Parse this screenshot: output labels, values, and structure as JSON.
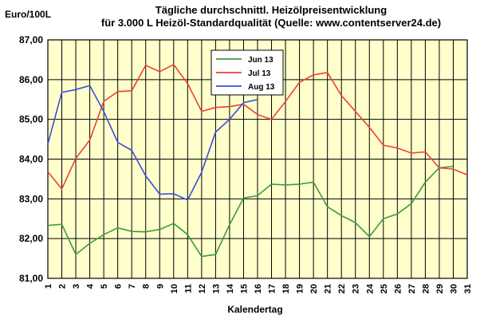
{
  "chart_data": {
    "type": "line",
    "title_line1": "Tägliche durchschnittl. Heizölpreisentwicklung",
    "title_line2": "für 3.000 L Heizöl-Standardqualität (Quelle: www.contentserver24.de)",
    "ylabel": "Euro/100L",
    "xlabel": "Kalendertag",
    "ylim": [
      81,
      87
    ],
    "yticks": [
      "81,00",
      "82,00",
      "83,00",
      "84,00",
      "85,00",
      "86,00",
      "87,00"
    ],
    "x": [
      1,
      2,
      3,
      4,
      5,
      6,
      7,
      8,
      9,
      10,
      11,
      12,
      13,
      14,
      15,
      16,
      17,
      18,
      19,
      20,
      21,
      22,
      23,
      24,
      25,
      26,
      27,
      28,
      29,
      30,
      31
    ],
    "grid": true,
    "legend_position": "top-center",
    "plot_background": "#ffffcc",
    "series": [
      {
        "name": "Jun 13",
        "color": "#3c9a3c",
        "values": [
          82.33,
          82.36,
          81.6,
          81.88,
          82.1,
          82.27,
          82.18,
          82.17,
          82.23,
          82.38,
          82.1,
          81.55,
          81.6,
          82.35,
          83.02,
          83.08,
          83.37,
          83.35,
          83.37,
          83.42,
          82.8,
          82.58,
          82.4,
          82.05,
          82.5,
          82.62,
          82.88,
          83.42,
          83.78,
          83.82,
          null
        ]
      },
      {
        "name": "Jul 13",
        "color": "#ee3f36",
        "values": [
          83.68,
          83.25,
          84.02,
          84.48,
          85.45,
          85.7,
          85.72,
          86.36,
          86.2,
          86.38,
          85.9,
          85.2,
          85.3,
          85.32,
          85.38,
          85.12,
          85.0,
          85.45,
          85.93,
          86.12,
          86.18,
          85.6,
          85.2,
          84.8,
          84.35,
          84.28,
          84.15,
          84.18,
          83.78,
          83.75,
          83.6
        ]
      },
      {
        "name": "Aug 13",
        "color": "#3a4fdc",
        "values": [
          84.38,
          85.68,
          85.75,
          85.85,
          85.2,
          84.42,
          84.22,
          83.58,
          83.12,
          83.13,
          82.97,
          83.67,
          84.68,
          85.0,
          85.42,
          85.5,
          null,
          null,
          null,
          null,
          null,
          null,
          null,
          null,
          null,
          null,
          null,
          null,
          null,
          null,
          null
        ]
      }
    ]
  }
}
